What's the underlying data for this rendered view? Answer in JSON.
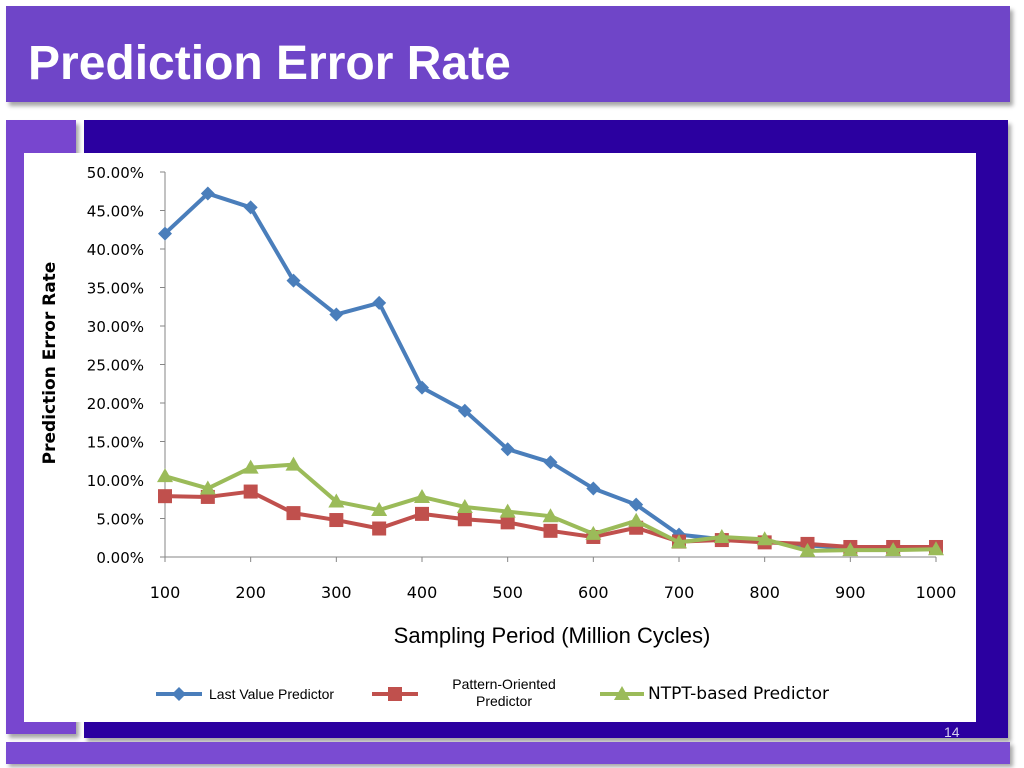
{
  "slide": {
    "title": "Prediction Error Rate",
    "page_number": "14"
  },
  "chart_data": {
    "type": "line",
    "xlabel": "Sampling Period (Million Cycles)",
    "ylabel": "Prediction Error Rate",
    "x": [
      100,
      150,
      200,
      250,
      300,
      350,
      400,
      450,
      500,
      550,
      600,
      650,
      700,
      750,
      800,
      850,
      900,
      950,
      1000
    ],
    "x_ticks": [
      "100",
      "200",
      "300",
      "400",
      "500",
      "600",
      "700",
      "800",
      "900",
      "1000"
    ],
    "y_ticks": [
      "0.00%",
      "5.00%",
      "10.00%",
      "15.00%",
      "20.00%",
      "25.00%",
      "30.00%",
      "35.00%",
      "40.00%",
      "45.00%",
      "50.00%"
    ],
    "ylim": [
      0,
      50
    ],
    "xlim": [
      100,
      1000
    ],
    "grid": false,
    "legend_position": "bottom",
    "series": [
      {
        "name": "Last Value Predictor",
        "color": "#4a7ebb",
        "marker": "diamond",
        "values": [
          42.0,
          47.2,
          45.4,
          35.9,
          31.5,
          33.0,
          22.0,
          19.0,
          14.0,
          12.3,
          8.9,
          6.8,
          2.9,
          2.3,
          2.0,
          1.5,
          1.2,
          1.3,
          1.2
        ]
      },
      {
        "name": "Pattern-Oriented Predictor",
        "color": "#c0504d",
        "marker": "square",
        "values": [
          7.9,
          7.8,
          8.5,
          5.7,
          4.8,
          3.7,
          5.6,
          4.9,
          4.5,
          3.4,
          2.6,
          3.8,
          2.0,
          2.2,
          1.9,
          1.7,
          1.3,
          1.3,
          1.3
        ]
      },
      {
        "name": "NTPT-based Predictor",
        "color": "#9bbb59",
        "marker": "triangle",
        "values": [
          10.5,
          8.9,
          11.6,
          12.0,
          7.2,
          6.1,
          7.8,
          6.5,
          5.9,
          5.3,
          3.0,
          4.7,
          1.9,
          2.6,
          2.3,
          0.8,
          0.9,
          0.9,
          1.0
        ]
      }
    ],
    "legend_labels": {
      "last_value": "Last Value Predictor",
      "pattern_line1": "Pattern-Oriented",
      "pattern_line2": "Predictor",
      "ntpt": "NTPT-based Predictor"
    }
  }
}
